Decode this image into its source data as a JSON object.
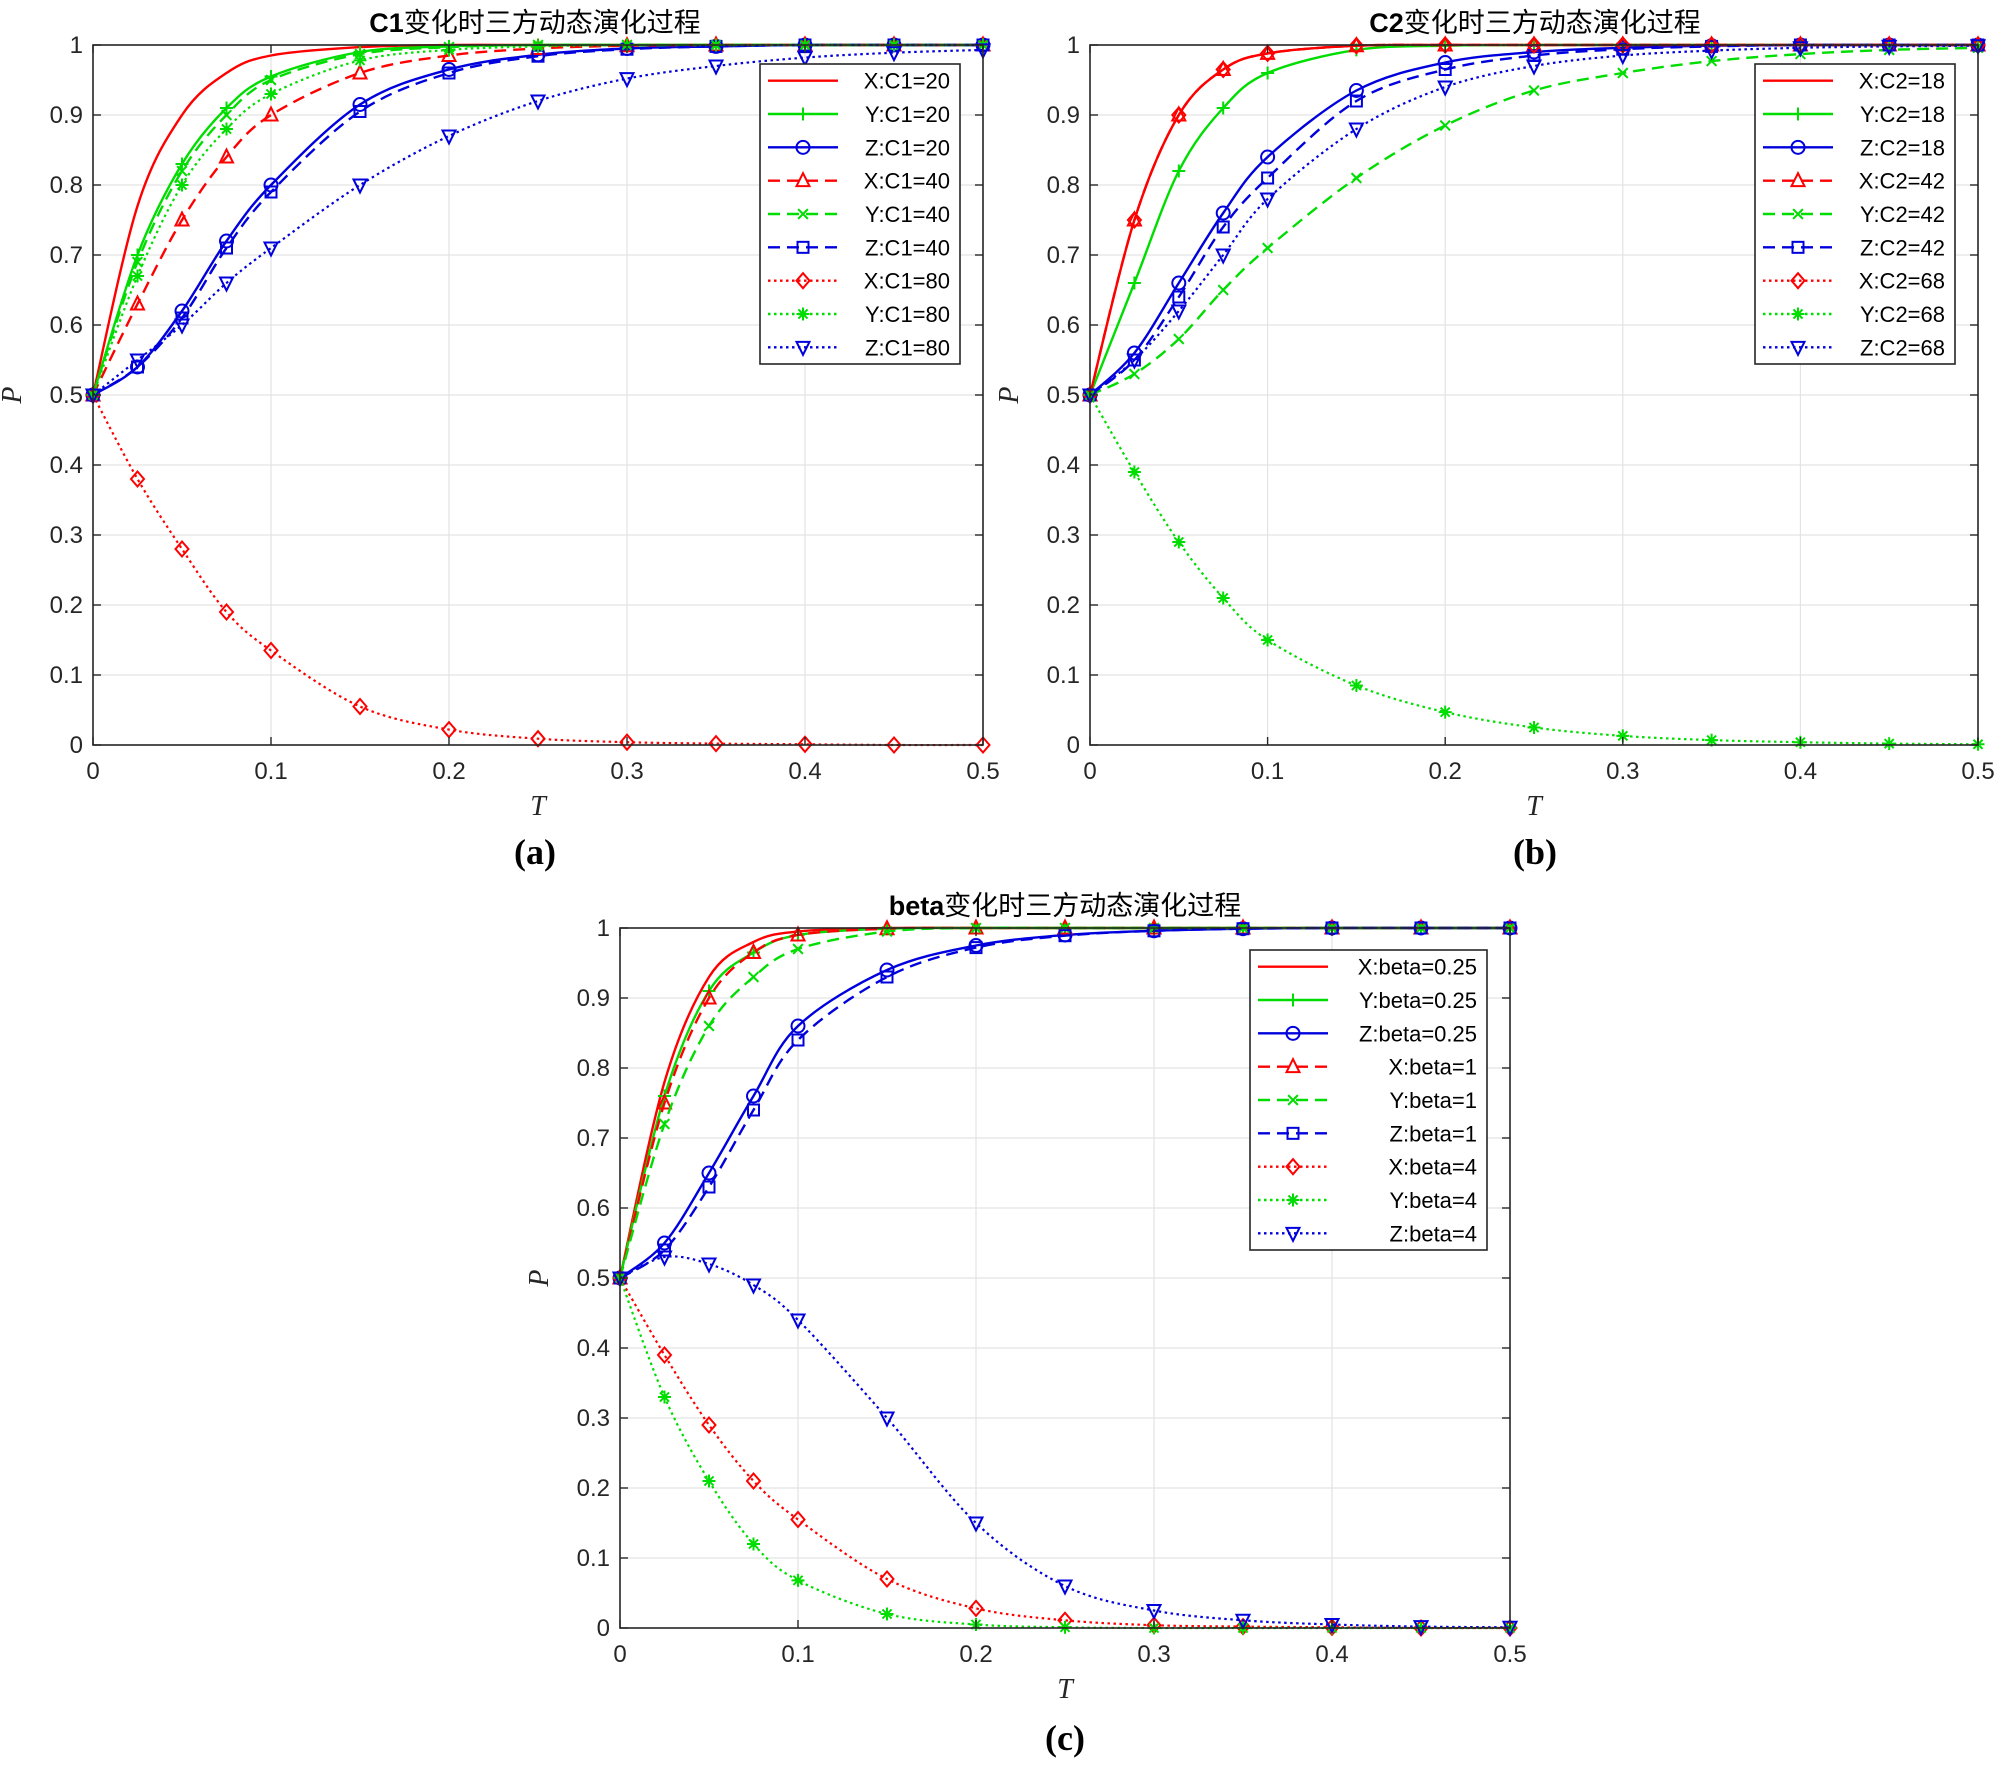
{
  "figure": {
    "panels": [
      {
        "letter": "(a)",
        "title_bold": "C1",
        "title_rest": "变化时三方动态演化过程"
      },
      {
        "letter": "(b)",
        "title_bold": "C2",
        "title_rest": "变化时三方动态演化过程"
      },
      {
        "letter": "(c)",
        "title_bold": "beta",
        "title_rest": "变化时三方动态演化过程"
      }
    ]
  },
  "chart_data": [
    {
      "type": "line",
      "title": "C1变化时三方动态演化过程",
      "panel_label": "(a)",
      "xlabel": "T",
      "ylabel": "P",
      "xlim": [
        0,
        0.5
      ],
      "ylim": [
        0,
        1
      ],
      "xticks": [
        "0",
        "0.1",
        "0.2",
        "0.3",
        "0.4",
        "0.5"
      ],
      "yticks": [
        "0",
        "0.1",
        "0.2",
        "0.3",
        "0.4",
        "0.5",
        "0.6",
        "0.7",
        "0.8",
        "0.9",
        "1"
      ],
      "grid": true,
      "legend_position": "top-right",
      "x": [
        0,
        0.025,
        0.05,
        0.075,
        0.1,
        0.15,
        0.2,
        0.25,
        0.3,
        0.35,
        0.4,
        0.45,
        0.5
      ],
      "series": [
        {
          "name": "X:C1=20",
          "color": "#ff0000",
          "style": "solid",
          "marker": "none",
          "values": [
            0.5,
            0.77,
            0.9,
            0.96,
            0.985,
            0.997,
            1,
            1,
            1,
            1,
            1,
            1,
            1
          ]
        },
        {
          "name": "Y:C1=20",
          "color": "#00dd00",
          "style": "solid",
          "marker": "plus",
          "values": [
            0.5,
            0.7,
            0.83,
            0.91,
            0.955,
            0.99,
            0.998,
            1,
            1,
            1,
            1,
            1,
            1
          ]
        },
        {
          "name": "Z:C1=20",
          "color": "#0000dd",
          "style": "solid",
          "marker": "circle",
          "values": [
            0.5,
            0.54,
            0.62,
            0.72,
            0.8,
            0.915,
            0.965,
            0.986,
            0.995,
            0.998,
            1,
            1,
            1
          ]
        },
        {
          "name": "X:C1=40",
          "color": "#ff0000",
          "style": "dashed",
          "marker": "triangle",
          "values": [
            0.5,
            0.63,
            0.75,
            0.84,
            0.9,
            0.96,
            0.985,
            0.995,
            0.999,
            1,
            1,
            1,
            1
          ]
        },
        {
          "name": "Y:C1=40",
          "color": "#00dd00",
          "style": "dashed",
          "marker": "x",
          "values": [
            0.5,
            0.69,
            0.82,
            0.9,
            0.95,
            0.987,
            0.997,
            1,
            1,
            1,
            1,
            1,
            1
          ]
        },
        {
          "name": "Z:C1=40",
          "color": "#0000dd",
          "style": "dashed",
          "marker": "square",
          "values": [
            0.5,
            0.54,
            0.61,
            0.71,
            0.79,
            0.905,
            0.96,
            0.984,
            0.994,
            0.998,
            1,
            1,
            1
          ]
        },
        {
          "name": "X:C1=80",
          "color": "#ff0000",
          "style": "dotted",
          "marker": "diamond",
          "values": [
            0.5,
            0.38,
            0.28,
            0.19,
            0.135,
            0.055,
            0.022,
            0.009,
            0.004,
            0.002,
            0.001,
            0,
            0
          ]
        },
        {
          "name": "Y:C1=80",
          "color": "#00dd00",
          "style": "dotted",
          "marker": "star",
          "values": [
            0.5,
            0.67,
            0.8,
            0.88,
            0.93,
            0.978,
            0.993,
            0.998,
            1,
            1,
            1,
            1,
            1
          ]
        },
        {
          "name": "Z:C1=80",
          "color": "#0000dd",
          "style": "dotted",
          "marker": "triangle-down",
          "values": [
            0.5,
            0.55,
            0.6,
            0.66,
            0.71,
            0.8,
            0.87,
            0.92,
            0.952,
            0.97,
            0.982,
            0.989,
            0.993
          ]
        }
      ]
    },
    {
      "type": "line",
      "title": "C2变化时三方动态演化过程",
      "panel_label": "(b)",
      "xlabel": "T",
      "ylabel": "P",
      "xlim": [
        0,
        0.5
      ],
      "ylim": [
        0,
        1
      ],
      "xticks": [
        "0",
        "0.1",
        "0.2",
        "0.3",
        "0.4",
        "0.5"
      ],
      "yticks": [
        "0",
        "0.1",
        "0.2",
        "0.3",
        "0.4",
        "0.5",
        "0.6",
        "0.7",
        "0.8",
        "0.9",
        "1"
      ],
      "grid": true,
      "legend_position": "top-right",
      "x": [
        0,
        0.025,
        0.05,
        0.075,
        0.1,
        0.15,
        0.2,
        0.25,
        0.3,
        0.35,
        0.4,
        0.45,
        0.5
      ],
      "series": [
        {
          "name": "X:C2=18",
          "color": "#ff0000",
          "style": "solid",
          "marker": "none",
          "values": [
            0.5,
            0.75,
            0.9,
            0.965,
            0.988,
            0.999,
            1,
            1,
            1,
            1,
            1,
            1,
            1
          ]
        },
        {
          "name": "Y:C2=18",
          "color": "#00dd00",
          "style": "solid",
          "marker": "plus",
          "values": [
            0.5,
            0.66,
            0.82,
            0.91,
            0.96,
            0.993,
            0.999,
            1,
            1,
            1,
            1,
            1,
            1
          ]
        },
        {
          "name": "Z:C2=18",
          "color": "#0000dd",
          "style": "solid",
          "marker": "circle",
          "values": [
            0.5,
            0.56,
            0.66,
            0.76,
            0.84,
            0.935,
            0.975,
            0.99,
            0.996,
            0.999,
            1,
            1,
            1
          ]
        },
        {
          "name": "X:C2=42",
          "color": "#ff0000",
          "style": "dashed",
          "marker": "triangle",
          "values": [
            0.5,
            0.75,
            0.9,
            0.965,
            0.988,
            0.999,
            1,
            1,
            1,
            1,
            1,
            1,
            1
          ]
        },
        {
          "name": "Y:C2=42",
          "color": "#00dd00",
          "style": "dashed",
          "marker": "x",
          "values": [
            0.5,
            0.53,
            0.58,
            0.65,
            0.71,
            0.81,
            0.885,
            0.935,
            0.96,
            0.977,
            0.987,
            0.993,
            0.996
          ]
        },
        {
          "name": "Z:C2=42",
          "color": "#0000dd",
          "style": "dashed",
          "marker": "square",
          "values": [
            0.5,
            0.55,
            0.64,
            0.74,
            0.81,
            0.92,
            0.965,
            0.985,
            0.994,
            0.998,
            1,
            1,
            1
          ]
        },
        {
          "name": "X:C2=68",
          "color": "#ff0000",
          "style": "dotted",
          "marker": "diamond",
          "values": [
            0.5,
            0.75,
            0.9,
            0.965,
            0.988,
            0.999,
            1,
            1,
            1,
            1,
            1,
            1,
            1
          ]
        },
        {
          "name": "Y:C2=68",
          "color": "#00dd00",
          "style": "dotted",
          "marker": "star",
          "values": [
            0.5,
            0.39,
            0.29,
            0.21,
            0.15,
            0.085,
            0.047,
            0.025,
            0.013,
            0.007,
            0.004,
            0.002,
            0.001
          ]
        },
        {
          "name": "Z:C2=68",
          "color": "#0000dd",
          "style": "dotted",
          "marker": "triangle-down",
          "values": [
            0.5,
            0.55,
            0.62,
            0.7,
            0.78,
            0.88,
            0.94,
            0.97,
            0.985,
            0.992,
            0.996,
            0.998,
            0.999
          ]
        }
      ]
    },
    {
      "type": "line",
      "title": "beta变化时三方动态演化过程",
      "panel_label": "(c)",
      "xlabel": "T",
      "ylabel": "P",
      "xlim": [
        0,
        0.5
      ],
      "ylim": [
        0,
        1
      ],
      "xticks": [
        "0",
        "0.1",
        "0.2",
        "0.3",
        "0.4",
        "0.5"
      ],
      "yticks": [
        "0",
        "0.1",
        "0.2",
        "0.3",
        "0.4",
        "0.5",
        "0.6",
        "0.7",
        "0.8",
        "0.9",
        "1"
      ],
      "grid": true,
      "legend_position": "top-right",
      "x": [
        0,
        0.025,
        0.05,
        0.075,
        0.1,
        0.15,
        0.2,
        0.25,
        0.3,
        0.35,
        0.4,
        0.45,
        0.5
      ],
      "series": [
        {
          "name": "X:beta=0.25",
          "color": "#ff0000",
          "style": "solid",
          "marker": "none",
          "values": [
            0.5,
            0.78,
            0.93,
            0.98,
            0.995,
            1,
            1,
            1,
            1,
            1,
            1,
            1,
            1
          ]
        },
        {
          "name": "Y:beta=0.25",
          "color": "#00dd00",
          "style": "solid",
          "marker": "plus",
          "values": [
            0.5,
            0.76,
            0.91,
            0.965,
            0.99,
            0.999,
            1,
            1,
            1,
            1,
            1,
            1,
            1
          ]
        },
        {
          "name": "Z:beta=0.25",
          "color": "#0000dd",
          "style": "solid",
          "marker": "circle",
          "values": [
            0.5,
            0.55,
            0.65,
            0.76,
            0.86,
            0.94,
            0.975,
            0.99,
            0.996,
            0.999,
            1,
            1,
            1
          ]
        },
        {
          "name": "X:beta=1",
          "color": "#ff0000",
          "style": "dashed",
          "marker": "triangle",
          "values": [
            0.5,
            0.75,
            0.9,
            0.965,
            0.99,
            0.999,
            1,
            1,
            1,
            1,
            1,
            1,
            1
          ]
        },
        {
          "name": "Y:beta=1",
          "color": "#00dd00",
          "style": "dashed",
          "marker": "x",
          "values": [
            0.5,
            0.72,
            0.86,
            0.93,
            0.97,
            0.995,
            1,
            1,
            1,
            1,
            1,
            1,
            1
          ]
        },
        {
          "name": "Z:beta=1",
          "color": "#0000dd",
          "style": "dashed",
          "marker": "square",
          "values": [
            0.5,
            0.54,
            0.63,
            0.74,
            0.84,
            0.93,
            0.972,
            0.989,
            0.996,
            0.999,
            1,
            1,
            1
          ]
        },
        {
          "name": "X:beta=4",
          "color": "#ff0000",
          "style": "dotted",
          "marker": "diamond",
          "values": [
            0.5,
            0.39,
            0.29,
            0.21,
            0.155,
            0.07,
            0.028,
            0.011,
            0.004,
            0.002,
            0.001,
            0,
            0
          ]
        },
        {
          "name": "Y:beta=4",
          "color": "#00dd00",
          "style": "dotted",
          "marker": "star",
          "values": [
            0.5,
            0.33,
            0.21,
            0.12,
            0.068,
            0.02,
            0.005,
            0.001,
            0,
            0,
            0,
            0,
            0
          ]
        },
        {
          "name": "Z:beta=4",
          "color": "#0000dd",
          "style": "dotted",
          "marker": "triangle-down",
          "values": [
            0.5,
            0.53,
            0.52,
            0.49,
            0.44,
            0.3,
            0.15,
            0.06,
            0.025,
            0.011,
            0.005,
            0.002,
            0.001
          ]
        }
      ]
    }
  ]
}
